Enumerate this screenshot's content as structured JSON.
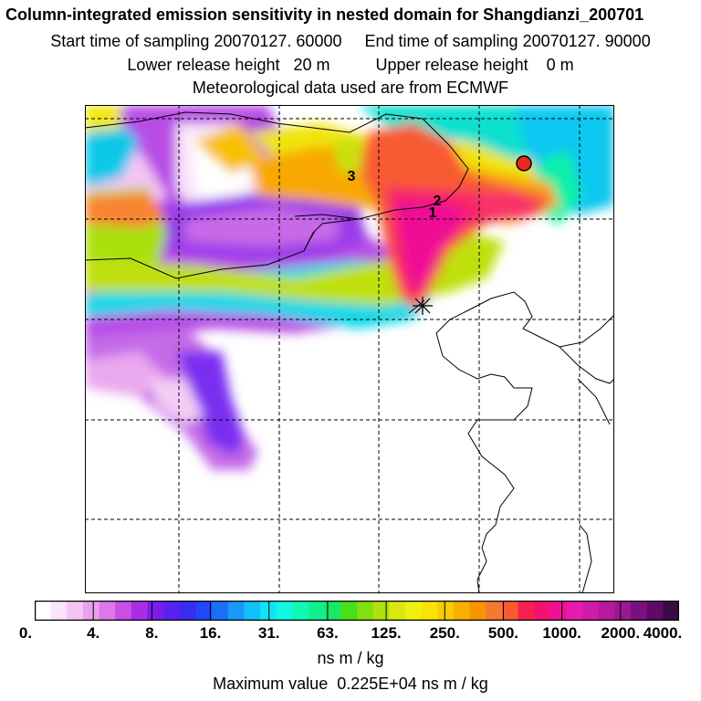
{
  "header": {
    "title": "Column-integrated emission sensitivity in nested domain for Shangdianzi_200701",
    "line1": "Start time of sampling 20070127. 60000     End time of sampling 20070127. 90000",
    "line2": "Lower release height   20 m          Upper release height    0 m",
    "line3": "Meteorological data used are from ECMWF"
  },
  "map": {
    "markers": {
      "label_1": "1",
      "label_2": "2",
      "label_3": "3"
    },
    "receptor_color": "#e8281e"
  },
  "colorbar": {
    "colors": [
      "#ffffff",
      "#fbe3fb",
      "#f5c4f5",
      "#eaa0ee",
      "#dc78ea",
      "#c84ee6",
      "#a82ee6",
      "#7a1ee8",
      "#5a22f0",
      "#3a2cf0",
      "#2048f8",
      "#1870f8",
      "#1898f8",
      "#10c0f8",
      "#10e4f4",
      "#10f8e0",
      "#10f8b4",
      "#10f090",
      "#18e864",
      "#48e018",
      "#80e010",
      "#b0e010",
      "#d8e810",
      "#f0f010",
      "#f8e400",
      "#f8cc00",
      "#f8b000",
      "#f89400",
      "#f87830",
      "#f85a30",
      "#f8204c",
      "#f81070",
      "#f01098",
      "#e81ab0",
      "#d01aa8",
      "#b8189c",
      "#9a1890",
      "#7a1080",
      "#5e0a68",
      "#3c0a48"
    ],
    "tick_labels": [
      "0.",
      "4.",
      "8.",
      "16.",
      "31.",
      "63.",
      "125.",
      "250.",
      "500.",
      "1000.",
      "2000.",
      "4000."
    ],
    "units": "ns m / kg",
    "max_value": "Maximum value  0.225E+04 ns m / kg"
  }
}
